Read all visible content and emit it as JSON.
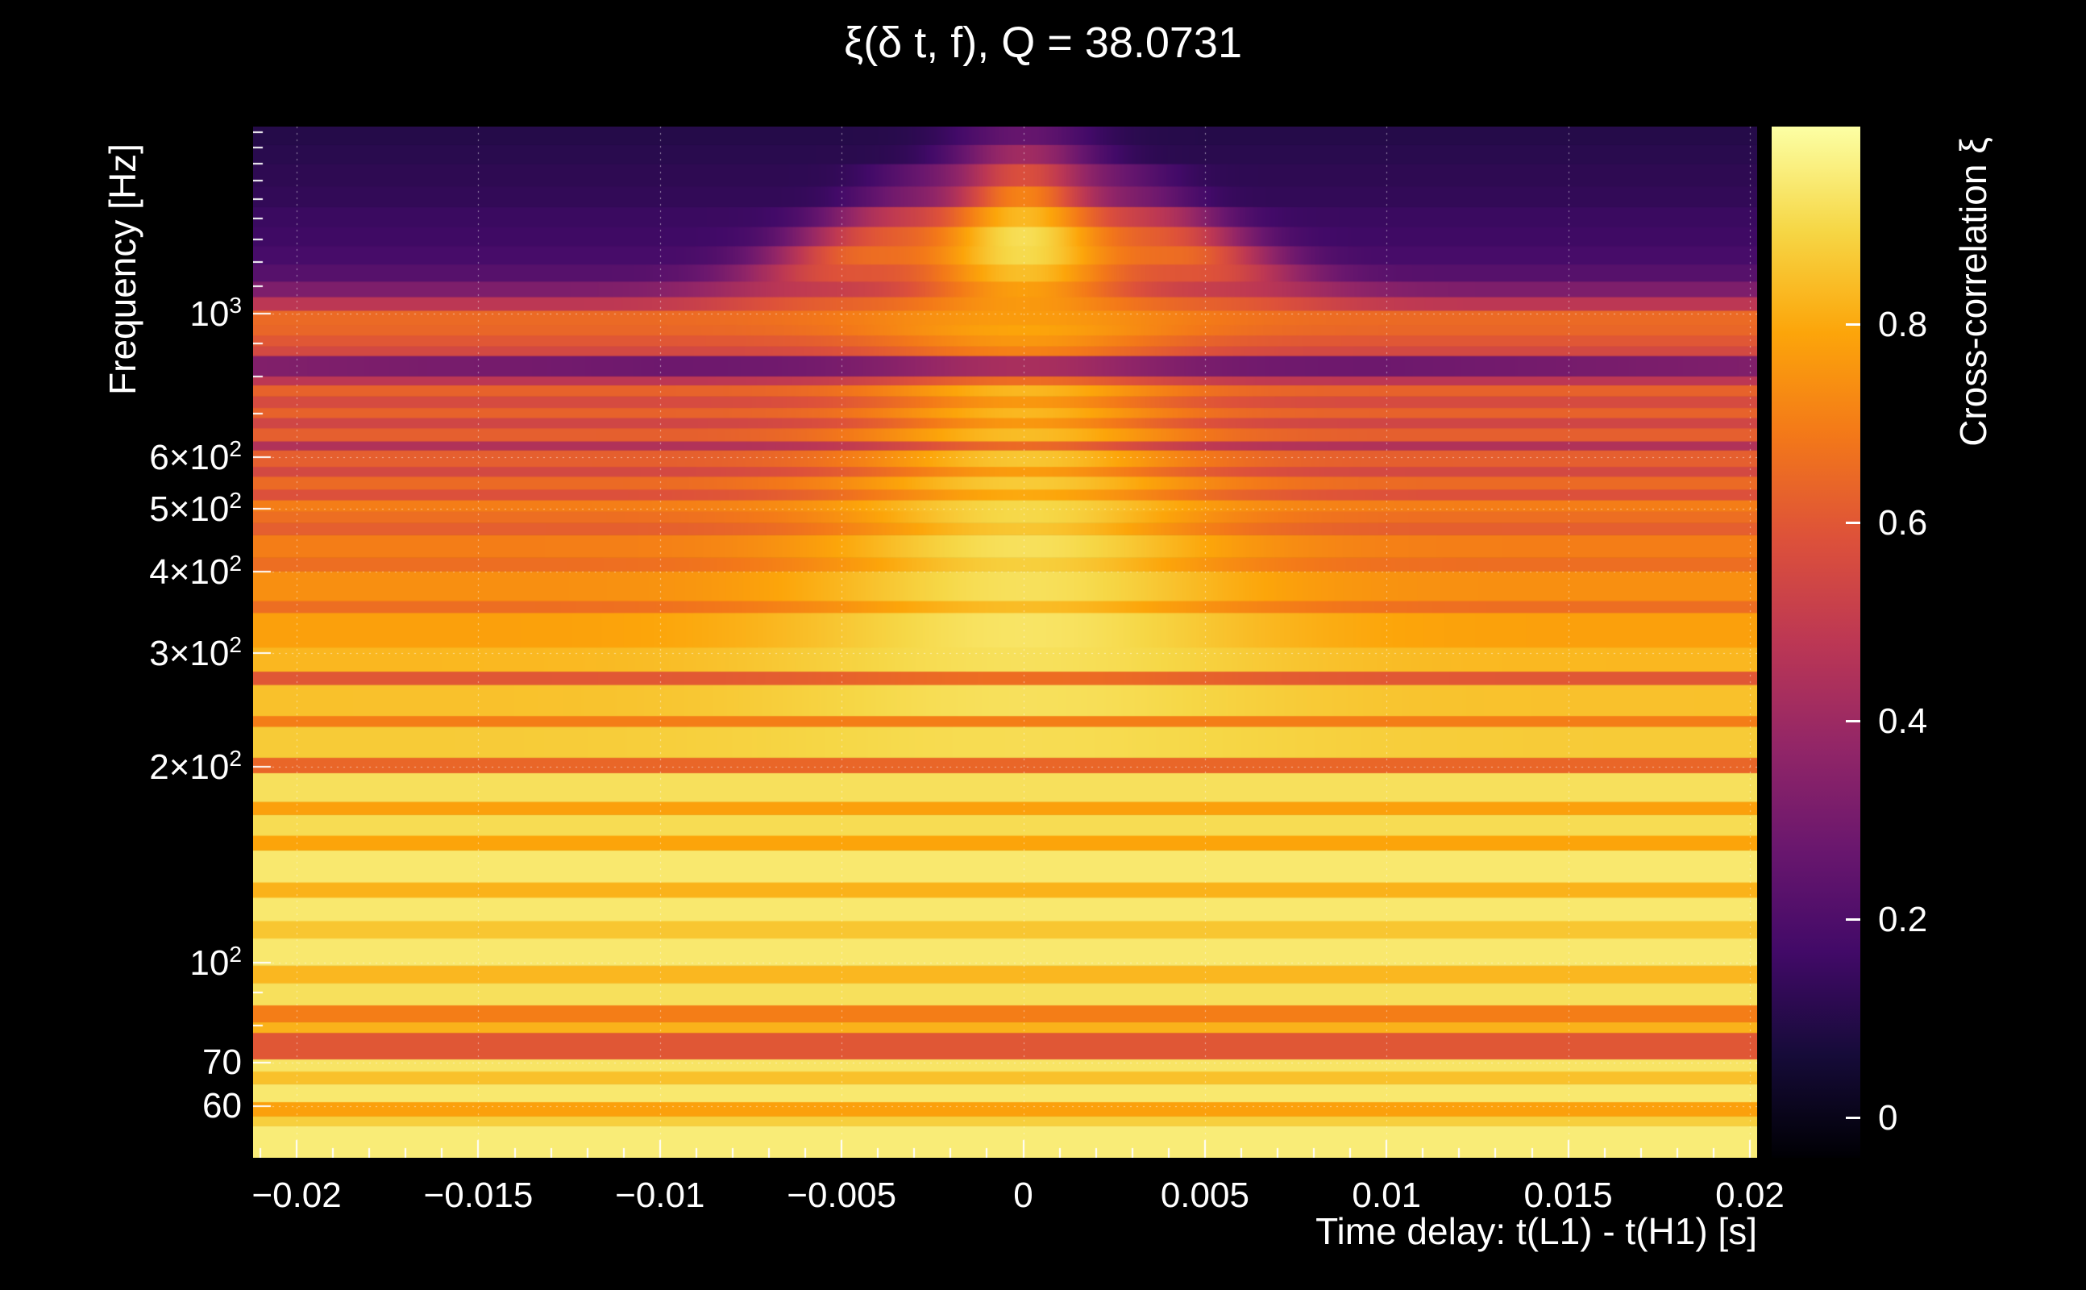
{
  "colors": {
    "background": "#000000",
    "text": "#ffffff",
    "grid": "#ffffff",
    "tick": "#ffffff"
  },
  "chart_data": {
    "type": "heatmap",
    "title": "ξ(δ t, f), Q = 38.0731",
    "xlabel": "Time delay: t(L1) - t(H1) [s]",
    "ylabel": "Frequency [Hz]",
    "colorbar_label": "Cross-correlation ξ",
    "x_range": [
      -0.0212,
      0.0202
    ],
    "y_range": [
      50,
      1940
    ],
    "y_scale": "log",
    "value_range": [
      -0.04,
      1.0
    ],
    "grid": "dotted",
    "x_ticks": [
      {
        "v": -0.02,
        "label": "−0.02"
      },
      {
        "v": -0.015,
        "label": "−0.015"
      },
      {
        "v": -0.01,
        "label": "−0.01"
      },
      {
        "v": -0.005,
        "label": "−0.005"
      },
      {
        "v": 0,
        "label": "0"
      },
      {
        "v": 0.005,
        "label": "0.005"
      },
      {
        "v": 0.01,
        "label": "0.01"
      },
      {
        "v": 0.015,
        "label": "0.015"
      },
      {
        "v": 0.02,
        "label": "0.02"
      }
    ],
    "x_minor_step": 0.001,
    "y_ticks": [
      {
        "v": 1000,
        "mant": "10",
        "exp": "3"
      },
      {
        "v": 600,
        "mant": "6×10",
        "exp": "2"
      },
      {
        "v": 500,
        "mant": "5×10",
        "exp": "2"
      },
      {
        "v": 400,
        "mant": "4×10",
        "exp": "2"
      },
      {
        "v": 300,
        "mant": "3×10",
        "exp": "2"
      },
      {
        "v": 200,
        "mant": "2×10",
        "exp": "2"
      },
      {
        "v": 100,
        "mant": "10",
        "exp": "2"
      },
      {
        "v": 70,
        "mant": "70"
      },
      {
        "v": 60,
        "mant": "60"
      }
    ],
    "y_minor_ticks": [
      50,
      80,
      90,
      700,
      800,
      900,
      1100,
      1200,
      1300,
      1400,
      1500,
      1600,
      1700,
      1800,
      1900
    ],
    "colorbar_ticks": [
      {
        "v": 0,
        "label": "0"
      },
      {
        "v": 0.2,
        "label": "0.2"
      },
      {
        "v": 0.4,
        "label": "0.4"
      },
      {
        "v": 0.6,
        "label": "0.6"
      },
      {
        "v": 0.8,
        "label": "0.8"
      }
    ],
    "colormap_name": "inferno",
    "colormap_stops": [
      {
        "p": 0.0,
        "c": "#000004"
      },
      {
        "p": 0.1,
        "c": "#160b39"
      },
      {
        "p": 0.2,
        "c": "#420a68"
      },
      {
        "p": 0.3,
        "c": "#6a176e"
      },
      {
        "p": 0.4,
        "c": "#932667"
      },
      {
        "p": 0.5,
        "c": "#bc3754"
      },
      {
        "p": 0.6,
        "c": "#dd513a"
      },
      {
        "p": 0.7,
        "c": "#f37819"
      },
      {
        "p": 0.8,
        "c": "#fca50a"
      },
      {
        "p": 0.9,
        "c": "#f6d746"
      },
      {
        "p": 1.0,
        "c": "#fcffa4"
      }
    ],
    "rows_model_note": "Cross-correlation xi per frequency band: value(t) = b + p*exp(-(t/s)^2) + wp*[exp(-((t-wt)/ws)^2)+exp(-((t+wt)/ws)^2)] + e*max(0,(|t|-0.01)/0.011). f in Hz, t in s.",
    "rows": [
      {
        "f": [
          50,
          56
        ],
        "b": 0.95
      },
      {
        "f": [
          56,
          58
        ],
        "b": 0.88
      },
      {
        "f": [
          58,
          61
        ],
        "b": 0.78
      },
      {
        "f": [
          61,
          65
        ],
        "b": 0.94
      },
      {
        "f": [
          65,
          68
        ],
        "b": 0.85
      },
      {
        "f": [
          68,
          71
        ],
        "b": 0.93
      },
      {
        "f": [
          71,
          78
        ],
        "b": 0.6
      },
      {
        "f": [
          78,
          81
        ],
        "b": 0.82
      },
      {
        "f": [
          81,
          86
        ],
        "b": 0.7
      },
      {
        "f": [
          86,
          93
        ],
        "b": 0.92
      },
      {
        "f": [
          93,
          99
        ],
        "b": 0.83
      },
      {
        "f": [
          99,
          109
        ],
        "b": 0.94
      },
      {
        "f": [
          109,
          116
        ],
        "b": 0.86
      },
      {
        "f": [
          116,
          126
        ],
        "b": 0.94
      },
      {
        "f": [
          126,
          133
        ],
        "b": 0.82
      },
      {
        "f": [
          133,
          149
        ],
        "b": 0.94
      },
      {
        "f": [
          149,
          157
        ],
        "b": 0.79
      },
      {
        "f": [
          157,
          169
        ],
        "b": 0.91
      },
      {
        "f": [
          169,
          177
        ],
        "b": 0.78
      },
      {
        "f": [
          177,
          196
        ],
        "b": 0.92
      },
      {
        "f": [
          196,
          207
        ],
        "b": 0.64
      },
      {
        "f": [
          207,
          231
        ],
        "b": 0.87,
        "p": 0.04,
        "s": 0.008
      },
      {
        "f": [
          231,
          240
        ],
        "b": 0.7
      },
      {
        "f": [
          240,
          268
        ],
        "b": 0.85,
        "p": 0.07,
        "s": 0.007
      },
      {
        "f": [
          268,
          281
        ],
        "b": 0.6,
        "p": 0.06,
        "s": 0.006
      },
      {
        "f": [
          281,
          306
        ],
        "b": 0.83,
        "p": 0.09,
        "s": 0.007
      },
      {
        "f": [
          306,
          346
        ],
        "b": 0.78,
        "p": 0.15,
        "s": 0.0065
      },
      {
        "f": [
          346,
          361
        ],
        "b": 0.66,
        "p": 0.18,
        "s": 0.006
      },
      {
        "f": [
          361,
          401
        ],
        "b": 0.74,
        "p": 0.18,
        "s": 0.006
      },
      {
        "f": [
          401,
          421
        ],
        "b": 0.66,
        "p": 0.22,
        "s": 0.0055
      },
      {
        "f": [
          421,
          456
        ],
        "b": 0.7,
        "p": 0.22,
        "s": 0.0055
      },
      {
        "f": [
          456,
          476
        ],
        "b": 0.62,
        "p": 0.24,
        "s": 0.005
      },
      {
        "f": [
          476,
          496
        ],
        "b": 0.66,
        "p": 0.24,
        "s": 0.005
      },
      {
        "f": [
          496,
          516
        ],
        "b": 0.7,
        "p": 0.2,
        "s": 0.005
      },
      {
        "f": [
          516,
          536
        ],
        "b": 0.58,
        "p": 0.22,
        "s": 0.005
      },
      {
        "f": [
          536,
          561
        ],
        "b": 0.65,
        "p": 0.22,
        "s": 0.005
      },
      {
        "f": [
          561,
          581
        ],
        "b": 0.55,
        "p": 0.22,
        "s": 0.0045
      },
      {
        "f": [
          581,
          616
        ],
        "b": 0.62,
        "p": 0.24,
        "s": 0.0045
      },
      {
        "f": [
          616,
          636
        ],
        "b": 0.45,
        "p": 0.2,
        "s": 0.004
      },
      {
        "f": [
          636,
          666
        ],
        "b": 0.62,
        "p": 0.22,
        "s": 0.0045
      },
      {
        "f": [
          666,
          691
        ],
        "b": 0.54,
        "p": 0.22,
        "s": 0.004
      },
      {
        "f": [
          691,
          716
        ],
        "b": 0.63,
        "p": 0.2,
        "s": 0.004
      },
      {
        "f": [
          716,
          746
        ],
        "b": 0.56,
        "p": 0.2,
        "s": 0.004
      },
      {
        "f": [
          746,
          776
        ],
        "b": 0.63,
        "p": 0.2,
        "s": 0.004
      },
      {
        "f": [
          776,
          801
        ],
        "b": 0.48,
        "p": 0.18,
        "s": 0.004
      },
      {
        "f": [
          801,
          861
        ],
        "b": 0.28,
        "p": 0.15,
        "s": 0.004,
        "e": 0.05
      },
      {
        "f": [
          861,
          891
        ],
        "b": 0.55,
        "p": 0.16,
        "s": 0.004
      },
      {
        "f": [
          891,
          926
        ],
        "b": 0.6,
        "p": 0.16,
        "s": 0.004
      },
      {
        "f": [
          926,
          961
        ],
        "b": 0.64,
        "p": 0.15,
        "s": 0.0045
      },
      {
        "f": [
          961,
          1011
        ],
        "b": 0.65,
        "p": 0.12,
        "s": 0.005
      },
      {
        "f": [
          1011,
          1061
        ],
        "b": 0.48,
        "p": 0.28,
        "s": 0.004,
        "wp": 0.1,
        "wt": 0.006,
        "ws": 0.003
      },
      {
        "f": [
          1061,
          1121
        ],
        "b": 0.32,
        "p": 0.45,
        "s": 0.0035,
        "wp": 0.15,
        "wt": 0.006,
        "ws": 0.003
      },
      {
        "f": [
          1121,
          1191
        ],
        "b": 0.22,
        "p": 0.62,
        "s": 0.0035,
        "wp": 0.3,
        "wt": 0.0055,
        "ws": 0.0025
      },
      {
        "f": [
          1191,
          1271
        ],
        "b": 0.18,
        "p": 0.72,
        "s": 0.0035,
        "wp": 0.35,
        "wt": 0.005,
        "ws": 0.0022
      },
      {
        "f": [
          1271,
          1361
        ],
        "b": 0.16,
        "p": 0.75,
        "s": 0.0032,
        "wp": 0.3,
        "wt": 0.0045,
        "ws": 0.002
      },
      {
        "f": [
          1361,
          1461
        ],
        "b": 0.15,
        "p": 0.68,
        "s": 0.0028,
        "wp": 0.22,
        "wt": 0.004,
        "ws": 0.0018
      },
      {
        "f": [
          1461,
          1571
        ],
        "b": 0.13,
        "p": 0.58,
        "s": 0.0022,
        "wp": 0.12,
        "wt": 0.0035,
        "ws": 0.0015
      },
      {
        "f": [
          1571,
          1701
        ],
        "b": 0.12,
        "p": 0.45,
        "s": 0.002,
        "wp": 0.09,
        "wt": 0.003,
        "ws": 0.0015
      },
      {
        "f": [
          1701,
          1821
        ],
        "b": 0.11,
        "p": 0.3,
        "s": 0.002
      },
      {
        "f": [
          1821,
          1940
        ],
        "b": 0.1,
        "p": 0.16,
        "s": 0.002
      }
    ]
  }
}
